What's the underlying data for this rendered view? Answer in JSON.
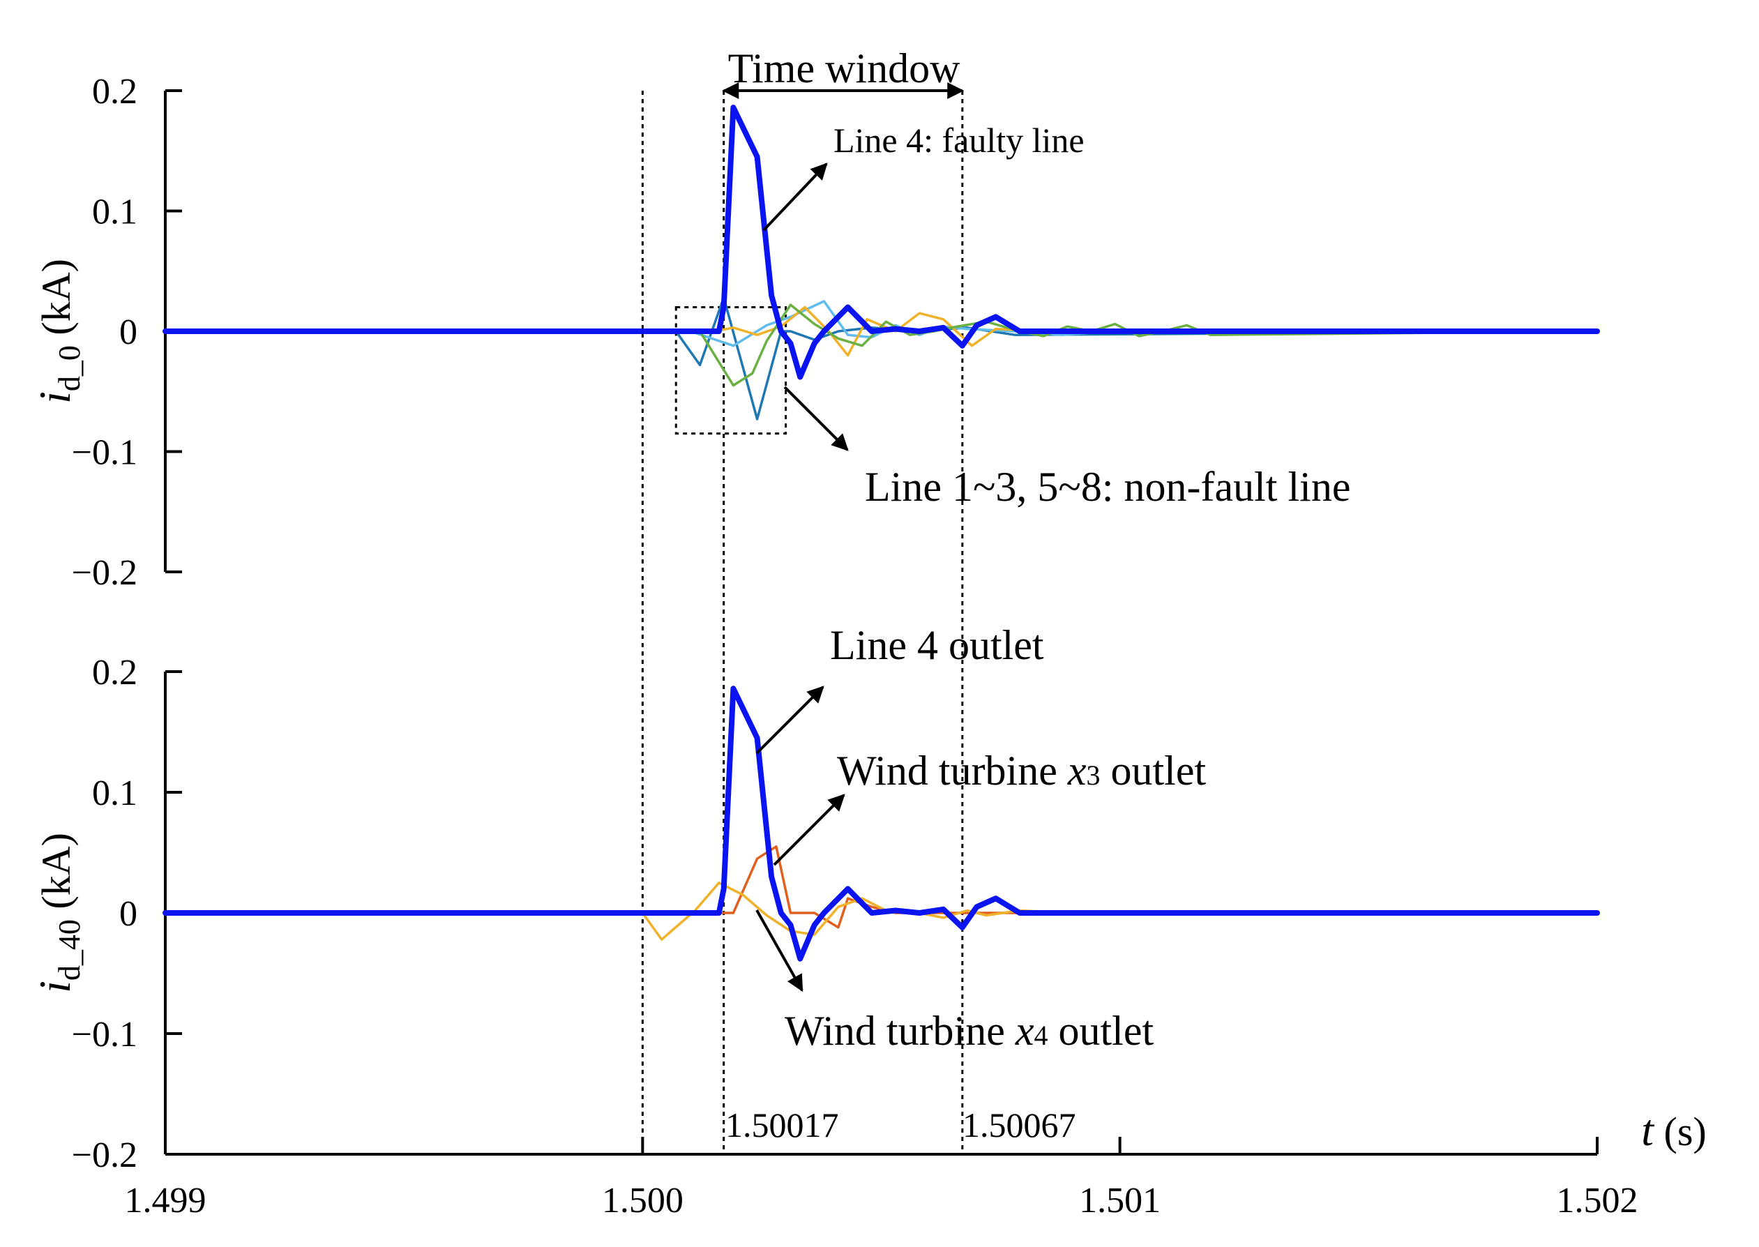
{
  "chart_data": [
    {
      "type": "line",
      "ylabel": {
        "main": "i",
        "sub": "d_0",
        "unit": " (kA)"
      },
      "xlim": [
        1.499,
        1.502
      ],
      "ylim": [
        -0.2,
        0.2
      ],
      "yticks": [
        "0.2",
        "0.1",
        "0",
        "−0.1",
        "−0.2"
      ],
      "grid": false,
      "series": [
        {
          "name": "Line 4: faulty line",
          "color": "#0a14f0",
          "bold": true,
          "x": [
            1.499,
            1.50016,
            1.50017,
            1.50019,
            1.50024,
            1.50027,
            1.50029,
            1.50031,
            1.50033,
            1.50036,
            1.50038,
            1.50043,
            1.50048,
            1.50053,
            1.50058,
            1.50063,
            1.50067,
            1.5007,
            1.50074,
            1.50079,
            1.50084,
            1.50089,
            1.502
          ],
          "y": [
            0,
            0,
            0.02,
            0.186,
            0.145,
            0.03,
            0,
            -0.01,
            -0.038,
            -0.01,
            0,
            0.02,
            0,
            0.002,
            0,
            0.003,
            -0.012,
            0.005,
            0.012,
            0,
            0,
            0,
            0
          ]
        },
        {
          "name": "Line 1~3, 5~8: non-fault line",
          "color": "#1f77b4",
          "x": [
            1.499,
            1.50007,
            1.50012,
            1.50017,
            1.50024,
            1.50029,
            1.50031,
            1.50036,
            1.50041,
            1.50048,
            1.50058,
            1.50068,
            1.50078,
            1.502
          ],
          "y": [
            0,
            0,
            -0.028,
            0.028,
            -0.073,
            0,
            0,
            -0.007,
            0,
            0.003,
            0,
            0.003,
            -0.003,
            0
          ]
        },
        {
          "name": "Line 1~3, 5~8: non-fault line",
          "color": "#5fbcec",
          "x": [
            1.499,
            1.5001,
            1.50019,
            1.50026,
            1.50031,
            1.50038,
            1.50043,
            1.50048,
            1.50053,
            1.50058,
            1.50063,
            1.50068,
            1.50078,
            1.50088,
            1.50098,
            1.502
          ],
          "y": [
            0,
            0,
            -0.012,
            0.005,
            0.012,
            0.025,
            -0.003,
            -0.005,
            0.005,
            -0.003,
            0.004,
            0.002,
            0,
            -0.003,
            0,
            0
          ]
        },
        {
          "name": "Line 1~3, 5~8: non-fault line",
          "color": "#f0b22a",
          "x": [
            1.499,
            1.50015,
            1.50019,
            1.50024,
            1.50029,
            1.50034,
            1.50039,
            1.50043,
            1.50047,
            1.50053,
            1.50058,
            1.50063,
            1.50069,
            1.50074,
            1.50085,
            1.502
          ],
          "y": [
            0,
            0,
            0.003,
            -0.003,
            0.004,
            0.02,
            0,
            -0.02,
            0.01,
            0,
            0.015,
            0.01,
            -0.012,
            0.002,
            0,
            0
          ]
        },
        {
          "name": "Line 1~3, 5~8: non-fault line",
          "color": "#6ab043",
          "x": [
            1.499,
            1.50012,
            1.50019,
            1.50023,
            1.50026,
            1.50031,
            1.50036,
            1.50041,
            1.50046,
            1.50051,
            1.50056,
            1.50061,
            1.50066,
            1.50072,
            1.50079,
            1.50084,
            1.50089,
            1.50094,
            1.50099,
            1.50104,
            1.50109,
            1.50114,
            1.50119,
            1.502
          ],
          "y": [
            0,
            0,
            -0.045,
            -0.035,
            -0.008,
            0.022,
            0.006,
            -0.006,
            -0.012,
            0.008,
            -0.003,
            0,
            0.004,
            0.008,
            0,
            -0.004,
            0.004,
            0,
            0.006,
            -0.004,
            0,
            0.005,
            -0.003,
            0
          ]
        }
      ],
      "annotations": {
        "time_window": "Time window",
        "faulty_line": "Line 4: faulty line",
        "non_fault_line": "Line 1~3, 5~8: non-fault line"
      }
    },
    {
      "type": "line",
      "ylabel": {
        "main": "i",
        "sub": "d_40",
        "unit": " (kA)"
      },
      "xlabel": {
        "main": "t",
        "unit": " (s)"
      },
      "xlim": [
        1.499,
        1.502
      ],
      "ylim": [
        -0.2,
        0.2
      ],
      "xticks": [
        "1.499",
        "1.500",
        "1.501",
        "1.502"
      ],
      "yticks": [
        "0.2",
        "0.1",
        "0",
        "−0.1",
        "−0.2"
      ],
      "grid": false,
      "series": [
        {
          "name": "Line 4 outlet",
          "color": "#0a14f0",
          "bold": true,
          "x": [
            1.499,
            1.50016,
            1.50017,
            1.50019,
            1.50024,
            1.50027,
            1.50029,
            1.50031,
            1.50033,
            1.50036,
            1.50038,
            1.50043,
            1.50048,
            1.50053,
            1.50058,
            1.50063,
            1.50067,
            1.5007,
            1.50074,
            1.50079,
            1.50084,
            1.50089,
            1.502
          ],
          "y": [
            0,
            0,
            0.02,
            0.186,
            0.145,
            0.03,
            0,
            -0.01,
            -0.038,
            -0.01,
            0,
            0.02,
            0,
            0.002,
            0,
            0.003,
            -0.012,
            0.005,
            0.012,
            0,
            0,
            0,
            0
          ]
        },
        {
          "name": "Wind turbine x3 outlet",
          "color": "#e06020",
          "x": [
            1.499,
            1.50019,
            1.50024,
            1.50028,
            1.50031,
            1.50036,
            1.50041,
            1.50043,
            1.50048,
            1.50053,
            1.50063,
            1.502
          ],
          "y": [
            0,
            0,
            0.045,
            0.055,
            0,
            0,
            -0.012,
            0.012,
            0.005,
            0,
            0,
            0
          ],
          "legend_label": {
            "pre": "Wind turbine ",
            "var": "x",
            "sub": "3",
            "post": " outlet"
          }
        },
        {
          "name": "Wind turbine x4 outlet",
          "color": "#f0b22a",
          "x": [
            1.499,
            1.5,
            1.50004,
            1.50011,
            1.50016,
            1.50021,
            1.50026,
            1.50031,
            1.50036,
            1.50041,
            1.50046,
            1.50051,
            1.50058,
            1.50063,
            1.50068,
            1.50072,
            1.50079,
            1.50089,
            1.502
          ],
          "y": [
            0,
            0,
            -0.022,
            0.002,
            0.025,
            0.015,
            -0.002,
            -0.015,
            -0.018,
            0.005,
            0.012,
            0.002,
            0,
            -0.004,
            0.002,
            -0.002,
            0.002,
            0,
            0
          ],
          "legend_label": {
            "pre": "Wind turbine ",
            "var": "x",
            "sub": "4",
            "post": " outlet"
          }
        }
      ],
      "annotations": {
        "t1": "1.50017",
        "t2": "1.50067"
      }
    }
  ]
}
